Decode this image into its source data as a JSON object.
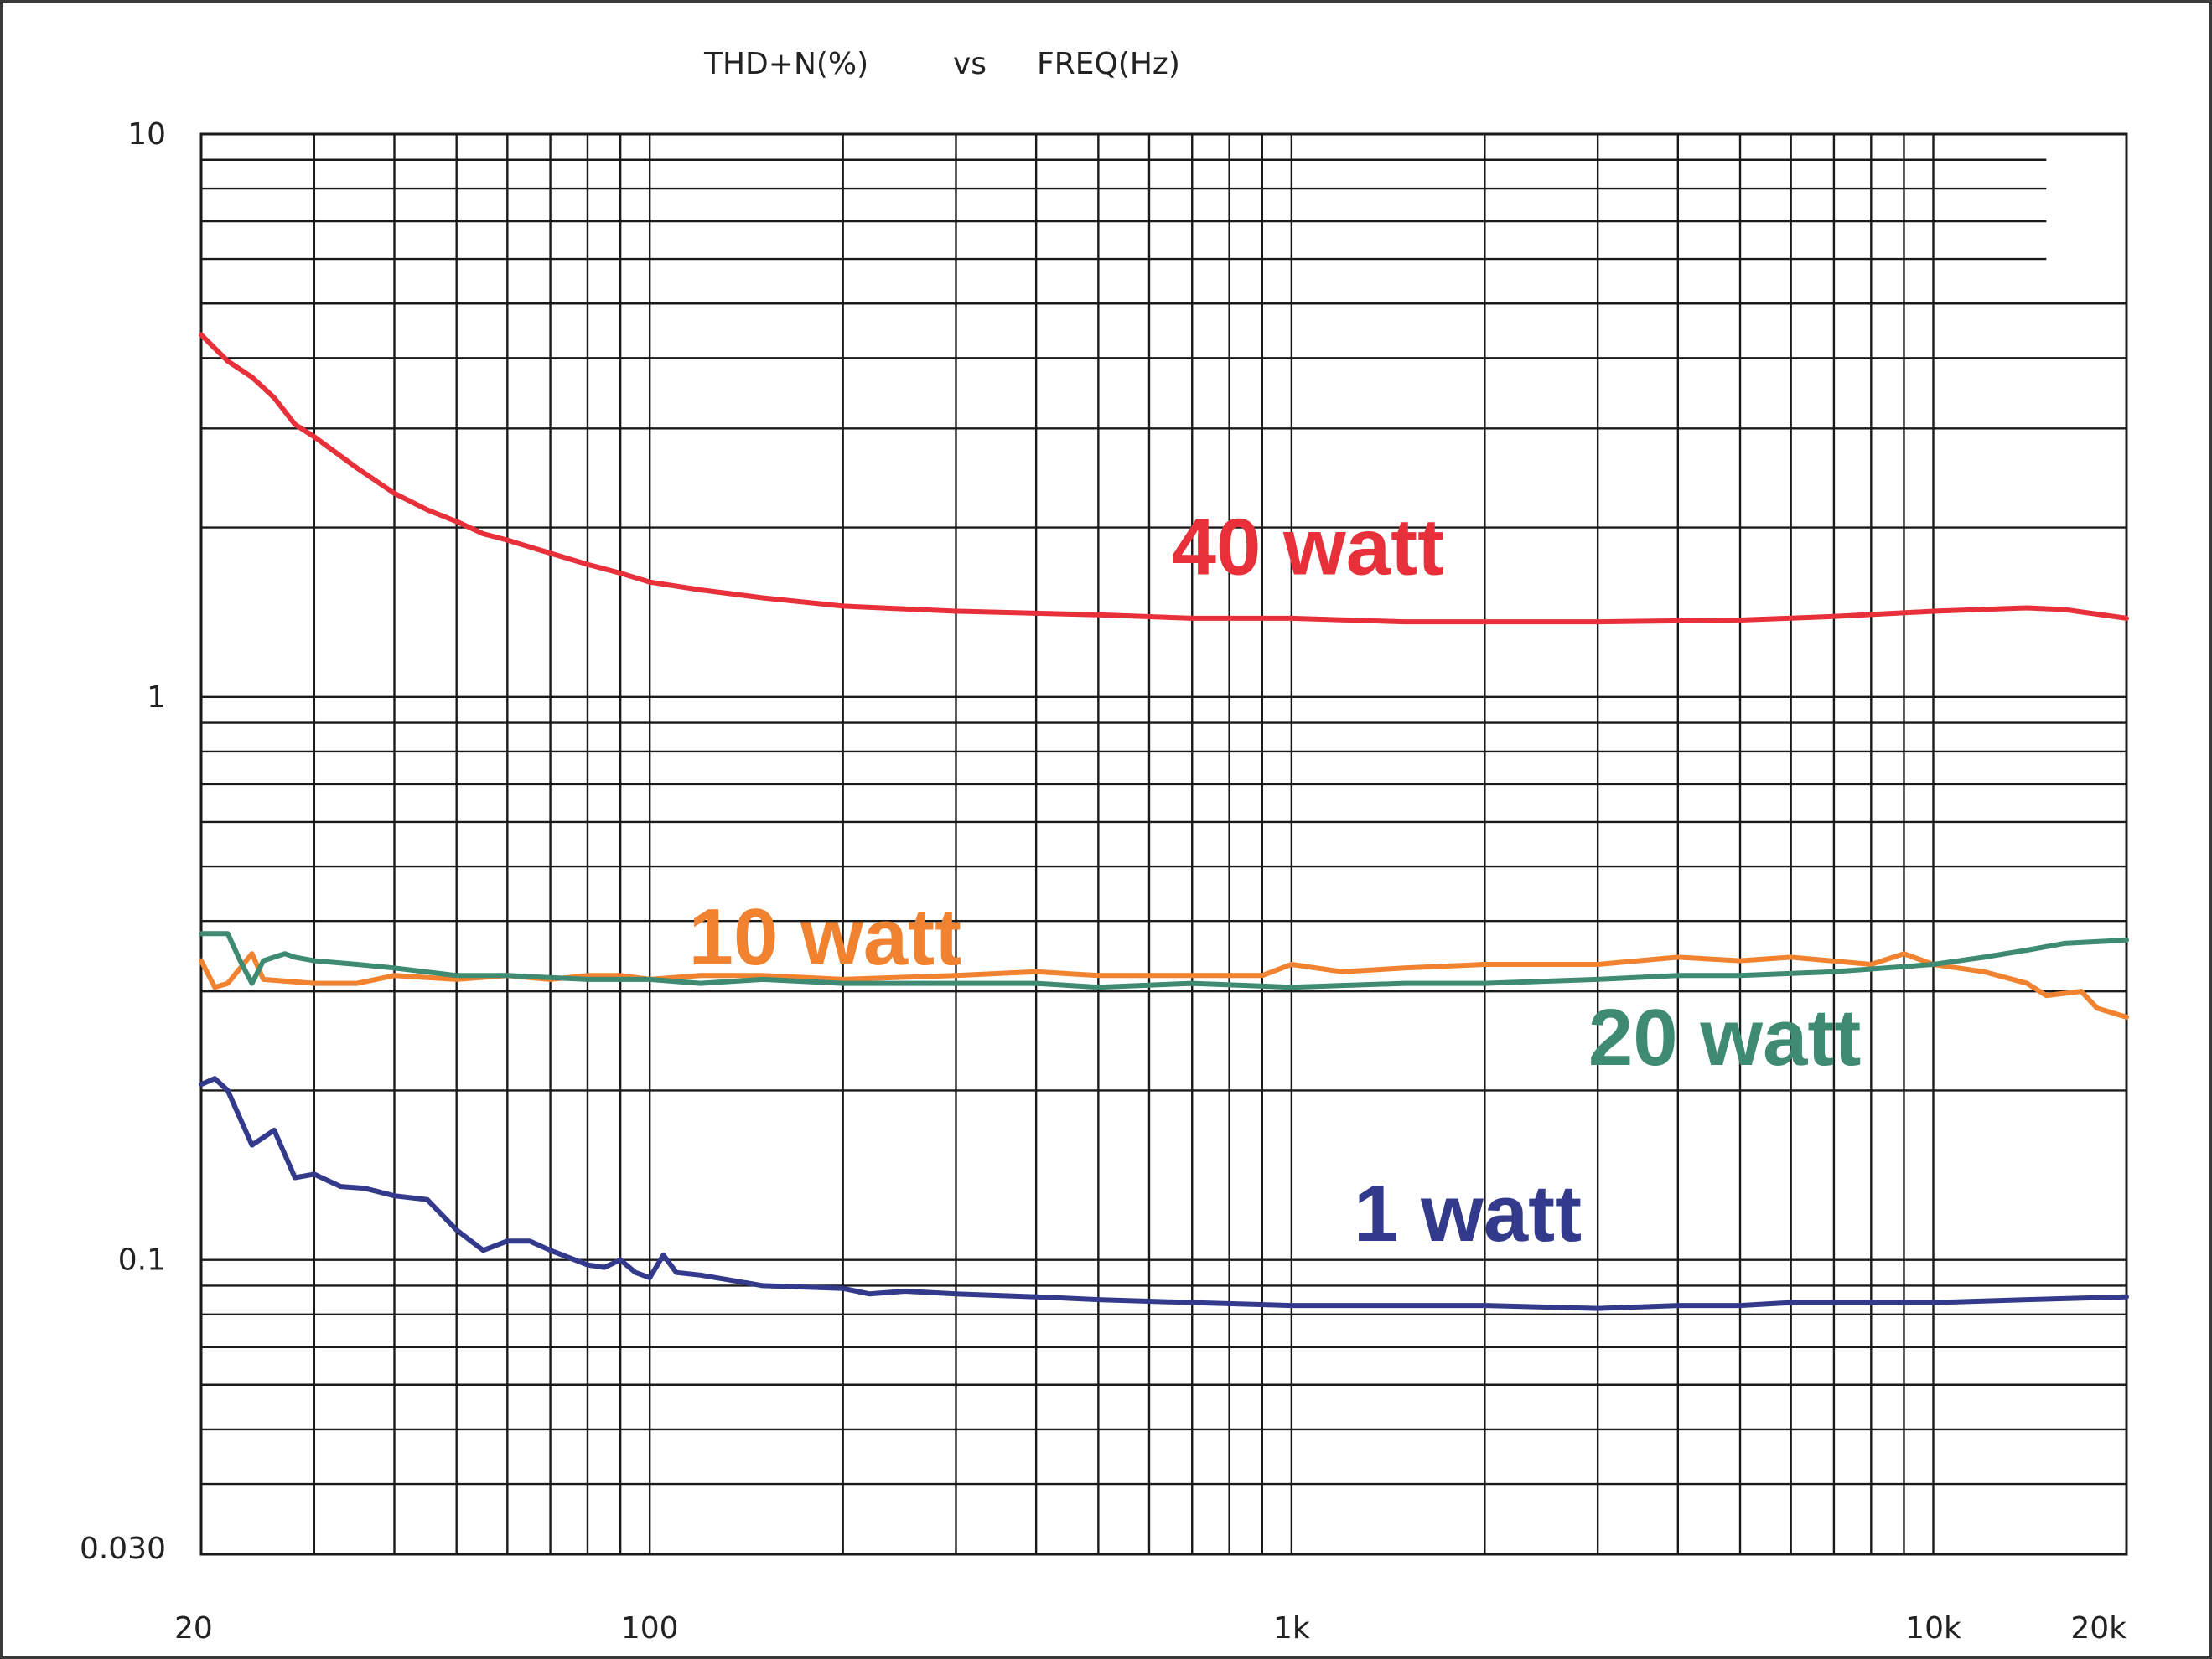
{
  "title": {
    "left": "THD+N(%)",
    "middle": "vs",
    "right": "FREQ(Hz)"
  },
  "chart_data": {
    "type": "line",
    "title": "THD+N(%) vs FREQ(Hz)",
    "xscale": "log",
    "yscale": "log",
    "xlim": [
      20,
      20000
    ],
    "ylim": [
      0.03,
      10
    ],
    "grid": true,
    "x_tick_labels": [
      {
        "value": 20,
        "label": "20"
      },
      {
        "value": 100,
        "label": "100"
      },
      {
        "value": 1000,
        "label": "1k"
      },
      {
        "value": 10000,
        "label": "10k"
      },
      {
        "value": 20000,
        "label": "20k"
      }
    ],
    "y_tick_labels": [
      {
        "value": 10,
        "label": "10"
      },
      {
        "value": 1,
        "label": "1"
      },
      {
        "value": 0.1,
        "label": "0.1"
      },
      {
        "value": 0.03,
        "label": "0.030"
      }
    ],
    "series": [
      {
        "name": "40 watt",
        "color": "#e8303a",
        "points": [
          [
            20,
            4.4
          ],
          [
            22,
            3.95
          ],
          [
            24,
            3.7
          ],
          [
            26,
            3.4
          ],
          [
            28,
            3.05
          ],
          [
            30,
            2.9
          ],
          [
            35,
            2.55
          ],
          [
            40,
            2.3
          ],
          [
            45,
            2.15
          ],
          [
            50,
            2.05
          ],
          [
            55,
            1.95
          ],
          [
            60,
            1.9
          ],
          [
            70,
            1.8
          ],
          [
            80,
            1.72
          ],
          [
            90,
            1.66
          ],
          [
            100,
            1.6
          ],
          [
            120,
            1.55
          ],
          [
            150,
            1.5
          ],
          [
            200,
            1.45
          ],
          [
            300,
            1.42
          ],
          [
            500,
            1.4
          ],
          [
            700,
            1.38
          ],
          [
            1000,
            1.38
          ],
          [
            1500,
            1.36
          ],
          [
            2000,
            1.36
          ],
          [
            3000,
            1.36
          ],
          [
            5000,
            1.37
          ],
          [
            7000,
            1.39
          ],
          [
            10000,
            1.42
          ],
          [
            14000,
            1.44
          ],
          [
            16000,
            1.43
          ],
          [
            20000,
            1.38
          ]
        ]
      },
      {
        "name": "10 watt",
        "color": "#f08230",
        "points": [
          [
            20,
            0.34
          ],
          [
            21,
            0.305
          ],
          [
            22,
            0.31
          ],
          [
            24,
            0.35
          ],
          [
            25,
            0.315
          ],
          [
            30,
            0.31
          ],
          [
            35,
            0.31
          ],
          [
            40,
            0.32
          ],
          [
            50,
            0.315
          ],
          [
            60,
            0.32
          ],
          [
            70,
            0.315
          ],
          [
            80,
            0.32
          ],
          [
            90,
            0.32
          ],
          [
            100,
            0.315
          ],
          [
            120,
            0.32
          ],
          [
            150,
            0.32
          ],
          [
            200,
            0.315
          ],
          [
            300,
            0.32
          ],
          [
            400,
            0.325
          ],
          [
            500,
            0.32
          ],
          [
            700,
            0.32
          ],
          [
            900,
            0.32
          ],
          [
            1000,
            0.335
          ],
          [
            1200,
            0.325
          ],
          [
            1500,
            0.33
          ],
          [
            2000,
            0.335
          ],
          [
            3000,
            0.335
          ],
          [
            4000,
            0.345
          ],
          [
            5000,
            0.34
          ],
          [
            6000,
            0.345
          ],
          [
            8000,
            0.335
          ],
          [
            9000,
            0.35
          ],
          [
            10000,
            0.335
          ],
          [
            12000,
            0.325
          ],
          [
            14000,
            0.31
          ],
          [
            15000,
            0.295
          ],
          [
            17000,
            0.3
          ],
          [
            18000,
            0.28
          ],
          [
            20000,
            0.27
          ]
        ]
      },
      {
        "name": "20 watt",
        "color": "#3e8a72",
        "points": [
          [
            20,
            0.38
          ],
          [
            22,
            0.38
          ],
          [
            23,
            0.34
          ],
          [
            24,
            0.31
          ],
          [
            25,
            0.34
          ],
          [
            27,
            0.35
          ],
          [
            28,
            0.345
          ],
          [
            30,
            0.34
          ],
          [
            35,
            0.335
          ],
          [
            40,
            0.33
          ],
          [
            50,
            0.32
          ],
          [
            60,
            0.32
          ],
          [
            80,
            0.315
          ],
          [
            100,
            0.315
          ],
          [
            120,
            0.31
          ],
          [
            150,
            0.315
          ],
          [
            200,
            0.31
          ],
          [
            300,
            0.31
          ],
          [
            400,
            0.31
          ],
          [
            500,
            0.305
          ],
          [
            700,
            0.31
          ],
          [
            1000,
            0.305
          ],
          [
            1500,
            0.31
          ],
          [
            2000,
            0.31
          ],
          [
            3000,
            0.315
          ],
          [
            4000,
            0.32
          ],
          [
            5000,
            0.32
          ],
          [
            7000,
            0.325
          ],
          [
            10000,
            0.335
          ],
          [
            12000,
            0.345
          ],
          [
            14000,
            0.355
          ],
          [
            16000,
            0.365
          ],
          [
            20000,
            0.37
          ]
        ]
      },
      {
        "name": "1 watt",
        "color": "#333a8c",
        "points": [
          [
            20,
            0.205
          ],
          [
            21,
            0.21
          ],
          [
            22,
            0.2
          ],
          [
            24,
            0.16
          ],
          [
            26,
            0.17
          ],
          [
            28,
            0.14
          ],
          [
            30,
            0.142
          ],
          [
            33,
            0.135
          ],
          [
            36,
            0.134
          ],
          [
            40,
            0.13
          ],
          [
            45,
            0.128
          ],
          [
            50,
            0.113
          ],
          [
            55,
            0.104
          ],
          [
            60,
            0.108
          ],
          [
            65,
            0.108
          ],
          [
            70,
            0.104
          ],
          [
            80,
            0.098
          ],
          [
            85,
            0.097
          ],
          [
            90,
            0.1
          ],
          [
            95,
            0.095
          ],
          [
            100,
            0.093
          ],
          [
            105,
            0.102
          ],
          [
            110,
            0.095
          ],
          [
            120,
            0.094
          ],
          [
            150,
            0.09
          ],
          [
            200,
            0.089
          ],
          [
            220,
            0.087
          ],
          [
            250,
            0.088
          ],
          [
            300,
            0.087
          ],
          [
            400,
            0.086
          ],
          [
            500,
            0.085
          ],
          [
            700,
            0.084
          ],
          [
            1000,
            0.083
          ],
          [
            1500,
            0.083
          ],
          [
            2000,
            0.083
          ],
          [
            3000,
            0.082
          ],
          [
            4000,
            0.083
          ],
          [
            5000,
            0.083
          ],
          [
            6000,
            0.084
          ],
          [
            8000,
            0.084
          ],
          [
            10000,
            0.084
          ],
          [
            14000,
            0.085
          ],
          [
            20000,
            0.086
          ]
        ]
      }
    ],
    "annotations": [
      {
        "text": "40 watt",
        "series": "40 watt",
        "color": "#e8303a",
        "anchor": {
          "x": 650,
          "y": 1.65
        }
      },
      {
        "text": "10 watt",
        "series": "10 watt",
        "color": "#f08230",
        "anchor": {
          "x": 115,
          "y": 0.335
        }
      },
      {
        "text": "20 watt",
        "series": "20 watt",
        "color": "#3e8a72",
        "anchor": {
          "x": 2900,
          "y": 0.222
        }
      },
      {
        "text": "1 watt",
        "series": "1 watt",
        "color": "#333a8c",
        "anchor": {
          "x": 1250,
          "y": 0.108
        }
      }
    ]
  }
}
